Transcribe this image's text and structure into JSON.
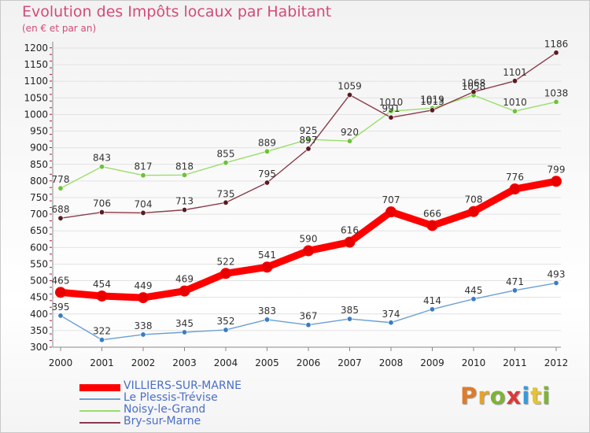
{
  "title": "Evolution des Impôts locaux par Habitant",
  "subtitle": "(en € et par an)",
  "brand": "Proxiti",
  "colors": {
    "title": "#d44a7a",
    "grid": "#e2e2e2",
    "axis": "#888888",
    "axis_ticks": "#c0104a",
    "legend_text": "#4a6ec8",
    "brand_letters": [
      "#e07b2a",
      "#e6a22c",
      "#7fb236",
      "#d93a3a",
      "#3a9ad9",
      "#e6c42c",
      "#7fb236"
    ]
  },
  "chart_data": {
    "type": "line",
    "categories": [
      "2000",
      "2001",
      "2002",
      "2003",
      "2004",
      "2005",
      "2006",
      "2007",
      "2008",
      "2009",
      "2010",
      "2011",
      "2012"
    ],
    "ylim": [
      300,
      1200
    ],
    "yticks": [
      300,
      350,
      400,
      450,
      500,
      550,
      600,
      650,
      700,
      750,
      800,
      850,
      900,
      950,
      1000,
      1050,
      1100,
      1150,
      1200
    ],
    "grid": "horizontal",
    "legend": "bottom-left",
    "series": [
      {
        "name": "VILLIERS-SUR-MARNE",
        "values": [
          465,
          454,
          449,
          469,
          522,
          541,
          590,
          616,
          707,
          666,
          708,
          776,
          799
        ],
        "color": "#ff0000",
        "marker": "#e80000",
        "emphasis": true
      },
      {
        "name": "Le Plessis-Trévise",
        "values": [
          395,
          322,
          338,
          345,
          352,
          383,
          367,
          385,
          374,
          414,
          445,
          471,
          493
        ],
        "color": "#6a9fd6",
        "marker": "#3a7cc4",
        "emphasis": false
      },
      {
        "name": "Noisy-le-Grand",
        "values": [
          778,
          843,
          817,
          818,
          855,
          889,
          925,
          920,
          1010,
          1019,
          1058,
          1010,
          1038
        ],
        "color": "#9ade6a",
        "marker": "#6cc23a",
        "emphasis": false
      },
      {
        "name": "Bry-sur-Marne",
        "values": [
          688,
          706,
          704,
          713,
          735,
          795,
          897,
          1059,
          991,
          1013,
          1068,
          1101,
          1186
        ],
        "color": "#8a3a4a",
        "marker": "#5a1a22",
        "emphasis": false
      }
    ]
  }
}
